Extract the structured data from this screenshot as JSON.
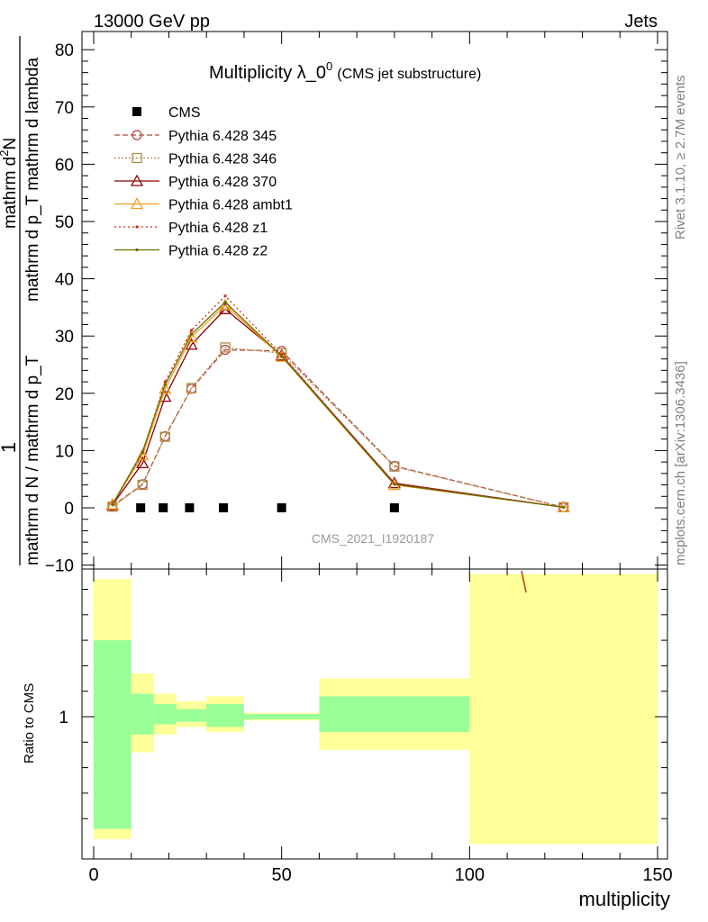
{
  "header": {
    "left": "13000 GeV pp",
    "right": "Jets"
  },
  "side": {
    "rivet": "Rivet 3.1.10, ≥ 2.7M events",
    "mcplots": "mcplots.cern.ch [arXiv:1306.3436]"
  },
  "watermark": "CMS_2021_I1920187",
  "chart_data": [
    {
      "type": "line",
      "title": "Multiplicity λ_0",
      "title_sup": "0",
      "subtitle": "(CMS jet substructure)",
      "ylabel_numerator": "mathrm d²N",
      "ylabel_numerator_main": "mathrm d",
      "ylabel_numerator_sup": "2",
      "ylabel_numerator_tail": "N",
      "ylabel_mid": "mathrm d p_T mathrm d lambda",
      "ylabel_denom": "mathrm d N / mathrm d p_T",
      "ylabel_one": "1",
      "xlim": [
        -3,
        150
      ],
      "ylim": [
        -10,
        84
      ],
      "yticks": [
        -10,
        0,
        10,
        20,
        30,
        40,
        50,
        60,
        70,
        80
      ],
      "ytick_labels": [
        "−10",
        "0",
        "10",
        "20",
        "30",
        "40",
        "50",
        "60",
        "70",
        "80"
      ],
      "legend_position": "top-left",
      "cms": {
        "name": "CMS",
        "x": [
          12.5,
          18.5,
          25.5,
          34.5,
          50,
          80
        ],
        "y": [
          0,
          0,
          0,
          0,
          0,
          0
        ]
      },
      "series": [
        {
          "name": "Pythia 6.428 345",
          "color": "#b5473e",
          "dash": "6,3",
          "marker": "circle",
          "x": [
            5,
            13,
            19,
            26,
            35,
            50,
            80,
            125
          ],
          "y": [
            0.3,
            4.1,
            12.5,
            20.8,
            27.6,
            27.4,
            7.3,
            0.1
          ]
        },
        {
          "name": "Pythia 6.428 346",
          "color": "#b08b48",
          "dash": "2,2",
          "marker": "square",
          "x": [
            5,
            13,
            19,
            26,
            35,
            50,
            80,
            125
          ],
          "y": [
            0.2,
            4.0,
            12.4,
            20.9,
            28.0,
            27.0,
            7.2,
            0.1
          ]
        },
        {
          "name": "Pythia 6.428 370",
          "color": "#8b0000",
          "dash": "",
          "marker": "triangle",
          "x": [
            5,
            13,
            19,
            26,
            35,
            50,
            80,
            125
          ],
          "y": [
            0.5,
            7.8,
            19.4,
            28.5,
            34.7,
            26.6,
            4.3,
            0.1
          ]
        },
        {
          "name": "Pythia 6.428 ambt1",
          "color": "#f2a01b",
          "dash": "",
          "marker": "triangle",
          "x": [
            5,
            13,
            19,
            26,
            35,
            50,
            80,
            125
          ],
          "y": [
            0.6,
            9.2,
            20.8,
            29.8,
            35.4,
            26.4,
            4.0,
            0.1
          ]
        },
        {
          "name": "Pythia 6.428 z1",
          "color": "#d42a1e",
          "dash": "2,3",
          "marker": "dot",
          "x": [
            5,
            13,
            19,
            26,
            35,
            50,
            80,
            125
          ],
          "y": [
            0.6,
            9.6,
            22.0,
            31.0,
            37.0,
            26.8,
            4.2,
            0.1
          ]
        },
        {
          "name": "Pythia 6.428 z2",
          "color": "#6b6b00",
          "dash": "",
          "marker": "dot",
          "x": [
            5,
            13,
            19,
            26,
            35,
            50,
            80,
            125
          ],
          "y": [
            0.6,
            9.8,
            21.5,
            30.3,
            35.9,
            26.5,
            4.1,
            0.1
          ]
        }
      ]
    },
    {
      "type": "bar",
      "ylabel": "Ratio to CMS",
      "xlabel": "multiplicity",
      "xlim": [
        -3,
        150
      ],
      "ylim": [
        0.5,
        1.6
      ],
      "yticks": [
        1
      ],
      "ytick_labels": [
        "1"
      ],
      "xticks": [
        0,
        50,
        100,
        150
      ],
      "xtick_labels": [
        "0",
        "50",
        "100",
        "150"
      ],
      "bands": [
        {
          "x0": 0,
          "x1": 10,
          "yellow": [
            0.52,
            1.54
          ],
          "green": [
            0.56,
            1.3
          ]
        },
        {
          "x0": 10,
          "x1": 16,
          "yellow": [
            0.86,
            1.17
          ],
          "green": [
            0.93,
            1.09
          ]
        },
        {
          "x0": 16,
          "x1": 22,
          "yellow": [
            0.93,
            1.09
          ],
          "green": [
            0.97,
            1.05
          ]
        },
        {
          "x0": 22,
          "x1": 30,
          "yellow": [
            0.96,
            1.06
          ],
          "green": [
            0.98,
            1.03
          ]
        },
        {
          "x0": 30,
          "x1": 40,
          "yellow": [
            0.94,
            1.08
          ],
          "green": [
            0.96,
            1.05
          ]
        },
        {
          "x0": 40,
          "x1": 60,
          "yellow": [
            0.985,
            1.015
          ],
          "green": [
            0.99,
            1.01
          ]
        },
        {
          "x0": 60,
          "x1": 100,
          "yellow": [
            0.87,
            1.15
          ],
          "green": [
            0.94,
            1.08
          ]
        },
        {
          "x0": 100,
          "x1": 150,
          "yellow": [
            0.5,
            1.56
          ],
          "green": null
        }
      ]
    }
  ]
}
